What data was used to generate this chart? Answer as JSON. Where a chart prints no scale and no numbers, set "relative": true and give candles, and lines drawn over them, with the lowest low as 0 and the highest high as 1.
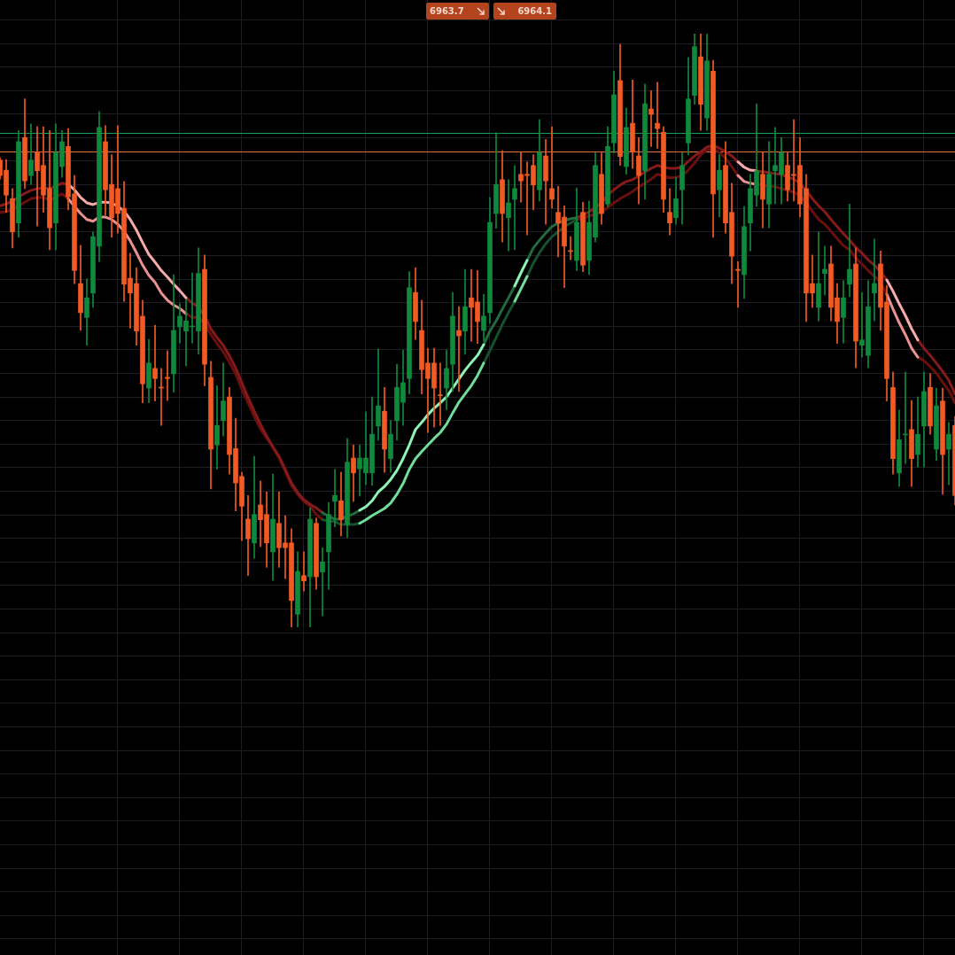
{
  "chart_data": {
    "type": "candlestick",
    "relative": true,
    "grid": true,
    "annotations": [
      "6963.7",
      "6964.1"
    ],
    "ref_lines": [
      {
        "axis": "y",
        "value": 0.833,
        "color": "#14a048"
      },
      {
        "axis": "y",
        "value": 0.801,
        "color": "#e8703c"
      }
    ],
    "categories": [
      null,
      null,
      null,
      null,
      null,
      null,
      null,
      null,
      null,
      null,
      null,
      null,
      null,
      null,
      null,
      null,
      null,
      null,
      null,
      null,
      null,
      null,
      null,
      null,
      null,
      null,
      null,
      null,
      null,
      null,
      null,
      null,
      null,
      null,
      null,
      null,
      null,
      null,
      null,
      null,
      null,
      null,
      null,
      null,
      null,
      null,
      null,
      null,
      null,
      null,
      null,
      null,
      null,
      null,
      null,
      null,
      null,
      null,
      null,
      null,
      null,
      null,
      null,
      null,
      null,
      null,
      null,
      null,
      null,
      null,
      null,
      null,
      null,
      null,
      null,
      null,
      null,
      null,
      null,
      null,
      null,
      null,
      null,
      null,
      null,
      null,
      null,
      null,
      null,
      null,
      null,
      null,
      null,
      null,
      null,
      null,
      null,
      null,
      null,
      null,
      null,
      null,
      null,
      null,
      null,
      null,
      null,
      null,
      null,
      null,
      null,
      null,
      null,
      null,
      null,
      null,
      null,
      null,
      null,
      null,
      null,
      null,
      null,
      null,
      null,
      null,
      null,
      null,
      null,
      null,
      null,
      null,
      null,
      null,
      null,
      null,
      null,
      null,
      null,
      null,
      null,
      null,
      null,
      null,
      null,
      null,
      null,
      null,
      null,
      null,
      null,
      null,
      null,
      null,
      null
    ],
    "ohlc": [
      [
        0.787,
        0.791,
        0.755,
        0.761
      ],
      [
        0.77,
        0.788,
        0.699,
        0.728
      ],
      [
        0.722,
        0.739,
        0.639,
        0.666
      ],
      [
        0.681,
        0.837,
        0.657,
        0.818
      ],
      [
        0.825,
        0.89,
        0.739,
        0.752
      ],
      [
        0.761,
        0.848,
        0.746,
        0.787
      ],
      [
        0.801,
        0.843,
        0.676,
        0.769
      ],
      [
        0.778,
        0.843,
        0.699,
        0.728
      ],
      [
        0.739,
        0.837,
        0.636,
        0.673
      ],
      [
        0.681,
        0.848,
        0.636,
        0.8
      ],
      [
        0.776,
        0.837,
        0.758,
        0.818
      ],
      [
        0.81,
        0.84,
        0.703,
        0.725
      ],
      [
        0.73,
        0.761,
        0.579,
        0.601
      ],
      [
        0.579,
        0.643,
        0.5,
        0.53
      ],
      [
        0.522,
        0.587,
        0.475,
        0.555
      ],
      [
        0.563,
        0.666,
        0.539,
        0.658
      ],
      [
        0.642,
        0.869,
        0.616,
        0.842
      ],
      [
        0.818,
        0.845,
        0.694,
        0.737
      ],
      [
        0.746,
        0.796,
        0.657,
        0.69
      ],
      [
        0.739,
        0.845,
        0.664,
        0.697
      ],
      [
        0.706,
        0.751,
        0.549,
        0.578
      ],
      [
        0.588,
        0.63,
        0.504,
        0.563
      ],
      [
        0.579,
        0.606,
        0.475,
        0.499
      ],
      [
        0.524,
        0.551,
        0.378,
        0.41
      ],
      [
        0.403,
        0.485,
        0.378,
        0.445
      ],
      [
        0.436,
        0.509,
        0.381,
        0.419
      ],
      [
        0.404,
        0.436,
        0.34,
        0.403
      ],
      [
        0.421,
        0.466,
        0.382,
        0.419
      ],
      [
        0.427,
        0.594,
        0.396,
        0.5
      ],
      [
        0.506,
        0.545,
        0.479,
        0.524
      ],
      [
        0.499,
        0.552,
        0.44,
        0.516
      ],
      [
        0.506,
        0.597,
        0.479,
        0.507
      ],
      [
        0.499,
        0.639,
        0.46,
        0.596
      ],
      [
        0.603,
        0.627,
        0.407,
        0.443
      ],
      [
        0.421,
        0.448,
        0.233,
        0.3
      ],
      [
        0.307,
        0.407,
        0.266,
        0.34
      ],
      [
        0.348,
        0.445,
        0.322,
        0.381
      ],
      [
        0.388,
        0.404,
        0.258,
        0.291
      ],
      [
        0.301,
        0.352,
        0.196,
        0.243
      ],
      [
        0.254,
        0.261,
        0.146,
        0.204
      ],
      [
        0.182,
        0.222,
        0.087,
        0.149
      ],
      [
        0.142,
        0.288,
        0.116,
        0.19
      ],
      [
        0.206,
        0.246,
        0.136,
        0.181
      ],
      [
        0.19,
        0.228,
        0.101,
        0.142
      ],
      [
        0.127,
        0.258,
        0.079,
        0.182
      ],
      [
        0.175,
        0.228,
        0.101,
        0.134
      ],
      [
        0.142,
        0.188,
        0.082,
        0.134
      ],
      [
        0.142,
        0.166,
        0,
        0.045
      ],
      [
        0.022,
        0.127,
        0,
        0.094
      ],
      [
        0.087,
        0.127,
        0.061,
        0.078
      ],
      [
        0.085,
        0.201,
        0,
        0.182
      ],
      [
        0.175,
        0.184,
        0.064,
        0.085
      ],
      [
        0.093,
        0.134,
        0.019,
        0.11
      ],
      [
        0.127,
        0.21,
        0.064,
        0.19
      ],
      [
        0.212,
        0.266,
        0.169,
        0.222
      ],
      [
        0.213,
        0.261,
        0.154,
        0.181
      ],
      [
        0.173,
        0.318,
        0.151,
        0.278
      ],
      [
        0.285,
        0.307,
        0.212,
        0.26
      ],
      [
        0.267,
        0.307,
        0.221,
        0.285
      ],
      [
        0.26,
        0.363,
        0.24,
        0.285
      ],
      [
        0.26,
        0.388,
        0.239,
        0.325
      ],
      [
        0.339,
        0.469,
        0.315,
        0.373
      ],
      [
        0.364,
        0.404,
        0.261,
        0.3
      ],
      [
        0.284,
        0.348,
        0.261,
        0.325
      ],
      [
        0.348,
        0.443,
        0.315,
        0.404
      ],
      [
        0.379,
        0.467,
        0.34,
        0.412
      ],
      [
        0.419,
        0.599,
        0.393,
        0.572
      ],
      [
        0.564,
        0.606,
        0.485,
        0.515
      ],
      [
        0.5,
        0.551,
        0.393,
        0.434
      ],
      [
        0.445,
        0.47,
        0.328,
        0.419
      ],
      [
        0.445,
        0.47,
        0.337,
        0.403
      ],
      [
        0.391,
        0.445,
        0.34,
        0.39
      ],
      [
        0.403,
        0.467,
        0.366,
        0.436
      ],
      [
        0.443,
        0.564,
        0.397,
        0.524
      ],
      [
        0.5,
        0.54,
        0.397,
        0.491
      ],
      [
        0.499,
        0.603,
        0.46,
        0.54
      ],
      [
        0.555,
        0.603,
        0.482,
        0.539
      ],
      [
        0.548,
        0.601,
        0.478,
        0.515
      ],
      [
        0.5,
        0.561,
        0.482,
        0.524
      ],
      [
        0.53,
        0.724,
        0.512,
        0.682
      ],
      [
        0.697,
        0.833,
        0.672,
        0.746
      ],
      [
        0.754,
        0.803,
        0.649,
        0.697
      ],
      [
        0.69,
        0.754,
        0.634,
        0.715
      ],
      [
        0.721,
        0.778,
        0.636,
        0.739
      ],
      [
        0.763,
        0.8,
        0.716,
        0.752
      ],
      [
        0.763,
        0.784,
        0.661,
        0.761
      ],
      [
        0.778,
        0.796,
        0.703,
        0.745
      ],
      [
        0.737,
        0.855,
        0.718,
        0.8
      ],
      [
        0.794,
        0.822,
        0.679,
        0.752
      ],
      [
        0.739,
        0.843,
        0.706,
        0.721
      ],
      [
        0.699,
        0.743,
        0.624,
        0.681
      ],
      [
        0.691,
        0.71,
        0.572,
        0.642
      ],
      [
        0.634,
        0.658,
        0.619,
        0.633
      ],
      [
        0.618,
        0.74,
        0.601,
        0.682
      ],
      [
        0.699,
        0.716,
        0.599,
        0.61
      ],
      [
        0.618,
        0.718,
        0.594,
        0.682
      ],
      [
        0.657,
        0.799,
        0.649,
        0.778
      ],
      [
        0.763,
        0.799,
        0.679,
        0.697
      ],
      [
        0.713,
        0.843,
        0.709,
        0.81
      ],
      [
        0.816,
        0.937,
        0.799,
        0.897
      ],
      [
        0.921,
        0.982,
        0.778,
        0.793
      ],
      [
        0.776,
        0.875,
        0.763,
        0.842
      ],
      [
        0.849,
        0.922,
        0.773,
        0.801
      ],
      [
        0.794,
        0.825,
        0.713,
        0.761
      ],
      [
        0.769,
        0.915,
        0.721,
        0.882
      ],
      [
        0.873,
        0.904,
        0.81,
        0.864
      ],
      [
        0.849,
        0.918,
        0.807,
        0.84
      ],
      [
        0.834,
        0.843,
        0.699,
        0.721
      ],
      [
        0.699,
        0.739,
        0.661,
        0.681
      ],
      [
        0.69,
        0.758,
        0.679,
        0.722
      ],
      [
        0.737,
        0.799,
        0.679,
        0.778
      ],
      [
        0.816,
        0.96,
        0.796,
        0.89
      ],
      [
        0.896,
        1,
        0.881,
        0.978
      ],
      [
        0.961,
        1,
        0.837,
        0.881
      ],
      [
        0.858,
        0.999,
        0.837,
        0.954
      ],
      [
        0.937,
        0.955,
        0.657,
        0.73
      ],
      [
        0.737,
        0.796,
        0.691,
        0.77
      ],
      [
        0.778,
        0.818,
        0.664,
        0.681
      ],
      [
        0.699,
        0.748,
        0.579,
        0.625
      ],
      [
        0.603,
        0.616,
        0.539,
        0.601
      ],
      [
        0.594,
        0.709,
        0.554,
        0.675
      ],
      [
        0.681,
        0.763,
        0.634,
        0.739
      ],
      [
        0.728,
        0.882,
        0.709,
        0.769
      ],
      [
        0.763,
        0.8,
        0.673,
        0.721
      ],
      [
        0.713,
        0.818,
        0.673,
        0.763
      ],
      [
        0.769,
        0.842,
        0.713,
        0.778
      ],
      [
        0.763,
        0.825,
        0.713,
        0.8
      ],
      [
        0.778,
        0.799,
        0.718,
        0.737
      ],
      [
        0.763,
        0.855,
        0.718,
        0.761
      ],
      [
        0.778,
        0.825,
        0.691,
        0.713
      ],
      [
        0.739,
        0.763,
        0.515,
        0.563
      ],
      [
        0.579,
        0.627,
        0.539,
        0.563
      ],
      [
        0.539,
        0.666,
        0.516,
        0.579
      ],
      [
        0.596,
        0.642,
        0.56,
        0.603
      ],
      [
        0.612,
        0.642,
        0.516,
        0.539
      ],
      [
        0.555,
        0.579,
        0.478,
        0.515
      ],
      [
        0.522,
        0.584,
        0.479,
        0.555
      ],
      [
        0.578,
        0.713,
        0.557,
        0.603
      ],
      [
        0.612,
        0.639,
        0.437,
        0.482
      ],
      [
        0.475,
        0.564,
        0.455,
        0.484
      ],
      [
        0.458,
        0.584,
        0.437,
        0.54
      ],
      [
        0.563,
        0.654,
        0.516,
        0.579
      ],
      [
        0.612,
        0.634,
        0.5,
        0.539
      ],
      [
        0.548,
        0.576,
        0.381,
        0.419
      ],
      [
        0.404,
        0.43,
        0.258,
        0.284
      ],
      [
        0.26,
        0.366,
        0.237,
        0.316
      ],
      [
        0.324,
        0.43,
        0.276,
        0.325
      ],
      [
        0.333,
        0.382,
        0.237,
        0.284
      ],
      [
        0.291,
        0.388,
        0.27,
        0.325
      ],
      [
        0.339,
        0.43,
        0.27,
        0.397
      ],
      [
        0.404,
        0.427,
        0.325,
        0.339
      ],
      [
        0.3,
        0.403,
        0.281,
        0.373
      ],
      [
        0.381,
        0.403,
        0.224,
        0.291
      ],
      [
        0.3,
        0.345,
        0.24,
        0.325
      ],
      [
        0.34,
        0.355,
        0.206,
        0.222
      ]
    ],
    "colors": [
      "#f25a24",
      "#f25a24",
      "#f25a24",
      "#0f8a3c",
      "#f25a24",
      "#0f8a3c",
      "#f25a24",
      "#f25a24",
      "#f25a24",
      "#0f8a3c",
      "#0f8a3c",
      "#f25a24",
      "#f25a24",
      "#f25a24",
      "#0f8a3c",
      "#0f8a3c",
      "#0f8a3c",
      "#f25a24",
      "#f25a24",
      "#f25a24",
      "#f25a24",
      "#f25a24",
      "#f25a24",
      "#f25a24",
      "#0f8a3c",
      "#f25a24",
      "#f25a24",
      "#f25a24",
      "#0f8a3c",
      "#0f8a3c",
      "#0f8a3c",
      "#0f8a3c",
      "#0f8a3c",
      "#f25a24",
      "#f25a24",
      "#0f8a3c",
      "#0f8a3c",
      "#f25a24",
      "#f25a24",
      "#f25a24",
      "#f25a24",
      "#0f8a3c",
      "#f25a24",
      "#f25a24",
      "#0f8a3c",
      "#f25a24",
      "#f25a24",
      "#f25a24",
      "#0f8a3c",
      "#f25a24",
      "#0f8a3c",
      "#f25a24",
      "#0f8a3c",
      "#0f8a3c",
      "#0f8a3c",
      "#f25a24",
      "#0f8a3c",
      "#f25a24",
      "#0f8a3c",
      "#0f8a3c",
      "#0f8a3c",
      "#0f8a3c",
      "#f25a24",
      "#0f8a3c",
      "#0f8a3c",
      "#0f8a3c",
      "#0f8a3c",
      "#f25a24",
      "#f25a24",
      "#f25a24",
      "#f25a24",
      "#f25a24",
      "#0f8a3c",
      "#0f8a3c",
      "#f25a24",
      "#0f8a3c",
      "#f25a24",
      "#f25a24",
      "#0f8a3c",
      "#0f8a3c",
      "#0f8a3c",
      "#f25a24",
      "#0f8a3c",
      "#0f8a3c",
      "#f25a24",
      "#f25a24",
      "#f25a24",
      "#0f8a3c",
      "#f25a24",
      "#f25a24",
      "#f25a24",
      "#f25a24",
      "#f25a24",
      "#0f8a3c",
      "#f25a24",
      "#0f8a3c",
      "#0f8a3c",
      "#f25a24",
      "#0f8a3c",
      "#0f8a3c",
      "#f25a24",
      "#0f8a3c",
      "#f25a24",
      "#f25a24",
      "#0f8a3c",
      "#f25a24",
      "#f25a24",
      "#f25a24",
      "#f25a24",
      "#0f8a3c",
      "#0f8a3c",
      "#0f8a3c",
      "#0f8a3c",
      "#f25a24",
      "#0f8a3c",
      "#f25a24",
      "#0f8a3c",
      "#f25a24",
      "#f25a24",
      "#f25a24",
      "#0f8a3c",
      "#0f8a3c",
      "#0f8a3c",
      "#f25a24",
      "#0f8a3c",
      "#0f8a3c",
      "#0f8a3c",
      "#f25a24",
      "#f25a24",
      "#f25a24",
      "#f25a24",
      "#f25a24",
      "#0f8a3c",
      "#0f8a3c",
      "#f25a24",
      "#f25a24",
      "#0f8a3c",
      "#0f8a3c",
      "#f25a24",
      "#0f8a3c",
      "#0f8a3c",
      "#0f8a3c",
      "#f25a24",
      "#f25a24",
      "#f25a24",
      "#0f8a3c",
      "#0f8a3c",
      "#f25a24",
      "#0f8a3c",
      "#0f8a3c",
      "#f25a24",
      "#0f8a3c",
      "#f25a24",
      "#0f8a3c",
      "#f25a24"
    ],
    "series": [
      {
        "type": "line",
        "color": "#f7aaaa",
        "values": [
          null,
          null,
          null,
          null,
          null,
          null,
          null,
          null,
          null,
          null,
          null,
          0.746,
          0.737,
          0.724,
          0.715,
          0.712,
          0.716,
          0.716,
          0.715,
          0.709,
          0.701,
          0.687,
          0.669,
          0.648,
          0.628,
          0.615,
          0.601,
          0.59,
          0.578,
          0.567,
          0.555,
          null,
          null,
          null,
          null,
          null,
          null,
          null,
          null,
          null,
          null,
          null,
          null,
          null,
          null,
          null,
          null,
          null,
          null,
          null,
          null,
          null,
          null,
          null,
          null,
          null,
          null,
          null,
          null,
          null,
          null,
          null,
          null,
          null,
          null,
          null,
          null,
          null,
          null,
          null,
          null,
          null,
          null,
          null,
          null,
          null,
          null,
          null,
          null,
          null,
          null,
          null,
          null,
          null,
          null,
          null,
          null,
          null,
          null,
          null,
          null,
          null,
          null,
          null,
          null,
          null,
          null,
          null,
          null,
          null,
          null,
          null,
          null,
          null,
          null,
          null,
          null,
          null,
          null,
          null,
          null,
          null,
          null,
          null,
          null,
          null,
          null,
          null,
          null,
          0.784,
          0.775,
          0.77,
          0.769,
          null,
          null,
          null,
          null,
          null,
          null,
          null,
          null,
          null,
          null,
          null,
          null,
          null,
          null,
          null,
          null,
          null,
          null,
          null,
          null,
          0.585,
          0.566,
          0.545,
          0.525,
          0.503,
          0.484,
          null,
          null,
          null,
          null,
          null,
          null
        ]
      },
      {
        "type": "line",
        "color": "#8ef4b6",
        "values": [
          null,
          null,
          null,
          null,
          null,
          null,
          null,
          null,
          null,
          null,
          null,
          null,
          null,
          null,
          null,
          null,
          null,
          null,
          null,
          null,
          null,
          null,
          null,
          null,
          null,
          null,
          null,
          null,
          null,
          null,
          null,
          null,
          null,
          null,
          null,
          null,
          null,
          null,
          null,
          null,
          null,
          null,
          null,
          null,
          null,
          null,
          null,
          null,
          null,
          null,
          null,
          null,
          null,
          null,
          null,
          null,
          null,
          null,
          0.197,
          0.203,
          0.213,
          0.228,
          0.237,
          0.249,
          0.264,
          0.284,
          0.307,
          0.333,
          0.345,
          0.358,
          0.369,
          0.378,
          0.388,
          0.403,
          0.418,
          0.433,
          0.446,
          0.458,
          0.476,
          null,
          null,
          null,
          null,
          0.575,
          0.597,
          0.618,
          null,
          null,
          null,
          null,
          null,
          null,
          null,
          null,
          null,
          null,
          null,
          null,
          null,
          null,
          null,
          null,
          null,
          null,
          null,
          null,
          null,
          null,
          null,
          null,
          null,
          null,
          null,
          null,
          null,
          null,
          null,
          null,
          null,
          null,
          null,
          null,
          null,
          null,
          null,
          null,
          null,
          null,
          null,
          null,
          null,
          null,
          null,
          null,
          null,
          null,
          null,
          null,
          null,
          null,
          null,
          null,
          null,
          null,
          null,
          null,
          null,
          null,
          null,
          null,
          null,
          null,
          null,
          null,
          null
        ]
      },
      {
        "type": "line",
        "color": "#226b3d",
        "values": [
          null,
          null,
          null,
          null,
          null,
          null,
          null,
          null,
          null,
          null,
          null,
          null,
          null,
          null,
          null,
          null,
          null,
          null,
          null,
          null,
          null,
          null,
          null,
          null,
          null,
          null,
          null,
          null,
          null,
          null,
          null,
          null,
          null,
          null,
          null,
          null,
          null,
          null,
          null,
          null,
          null,
          null,
          null,
          null,
          null,
          null,
          null,
          null,
          null,
          null,
          null,
          null,
          0.193,
          0.187,
          0.182,
          0.182,
          0.187,
          0.191,
          0.197,
          null,
          null,
          null,
          null,
          null,
          null,
          null,
          null,
          null,
          null,
          null,
          null,
          null,
          null,
          null,
          null,
          null,
          null,
          null,
          0.476,
          0.499,
          0.516,
          0.536,
          0.555,
          0.575,
          null,
          0.618,
          0.639,
          0.652,
          0.664,
          0.675,
          0.681,
          0.685,
          0.688,
          0.69,
          null,
          null,
          null,
          null,
          null,
          null,
          null,
          null,
          null,
          null,
          null,
          null,
          null,
          null,
          null,
          null,
          null,
          null,
          null,
          null,
          null,
          null,
          null,
          null,
          null,
          null,
          null,
          null,
          null,
          null,
          null,
          null,
          null,
          null,
          null,
          null,
          null,
          null,
          null,
          null,
          null,
          null,
          null,
          null,
          null,
          null,
          null,
          null,
          null,
          null,
          null,
          null,
          null,
          null,
          null,
          null,
          null,
          null,
          null,
          null,
          null
        ]
      },
      {
        "type": "line",
        "color": "#861a1a",
        "values": [
          0.71,
          0.713,
          0.718,
          0.725,
          0.731,
          0.736,
          0.739,
          0.74,
          0.739,
          0.743,
          0.748,
          0.746,
          null,
          null,
          null,
          null,
          null,
          null,
          null,
          null,
          null,
          null,
          null,
          null,
          null,
          null,
          null,
          null,
          null,
          null,
          0.555,
          0.546,
          0.54,
          0.524,
          0.503,
          0.488,
          0.475,
          0.457,
          0.437,
          0.412,
          0.387,
          0.364,
          0.342,
          0.322,
          0.304,
          0.288,
          0.266,
          0.243,
          0.227,
          0.215,
          0.207,
          0.201,
          0.193,
          null,
          null,
          null,
          null,
          null,
          null,
          null,
          null,
          null,
          null,
          null,
          null,
          null,
          null,
          null,
          null,
          null,
          null,
          null,
          null,
          null,
          null,
          null,
          null,
          null,
          null,
          null,
          null,
          null,
          null,
          null,
          null,
          null,
          null,
          null,
          null,
          null,
          null,
          null,
          null,
          0.69,
          0.694,
          0.7,
          0.707,
          0.715,
          0.728,
          0.737,
          0.745,
          0.751,
          0.754,
          0.76,
          0.767,
          0.773,
          0.778,
          0.775,
          0.773,
          0.773,
          0.775,
          0.785,
          0.794,
          0.801,
          0.809,
          0.812,
          0.807,
          0.801,
          0.794,
          0.784,
          null,
          null,
          0.769,
          0.767,
          0.766,
          0.764,
          0.763,
          0.758,
          0.755,
          0.748,
          0.736,
          0.722,
          0.71,
          0.7,
          0.687,
          0.675,
          0.663,
          0.652,
          0.64,
          0.63,
          0.619,
          0.61,
          0.599,
          0.585,
          null,
          null,
          null,
          null,
          0.484,
          0.47,
          0.458,
          0.445,
          0.431,
          0.416,
          0.393
        ]
      },
      {
        "type": "line",
        "color": "#eb9090",
        "values": [
          null,
          null,
          null,
          null,
          null,
          null,
          null,
          null,
          null,
          null,
          null,
          0.722,
          0.709,
          0.697,
          0.687,
          0.684,
          0.691,
          0.691,
          0.687,
          0.679,
          0.667,
          0.651,
          0.631,
          0.61,
          0.593,
          0.581,
          0.563,
          0.551,
          0.543,
          0.537,
          0.528,
          null,
          null,
          null,
          null,
          null,
          null,
          null,
          null,
          null,
          null,
          null,
          null,
          null,
          null,
          null,
          null,
          null,
          null,
          null,
          null,
          null,
          null,
          null,
          null,
          null,
          null,
          null,
          null,
          null,
          null,
          null,
          null,
          null,
          null,
          null,
          null,
          null,
          null,
          null,
          null,
          null,
          null,
          null,
          null,
          null,
          null,
          null,
          null,
          null,
          null,
          null,
          null,
          null,
          null,
          null,
          null,
          null,
          null,
          null,
          null,
          null,
          null,
          null,
          null,
          null,
          null,
          null,
          null,
          null,
          null,
          null,
          null,
          null,
          null,
          null,
          null,
          null,
          null,
          null,
          null,
          null,
          null,
          null,
          null,
          null,
          null,
          null,
          null,
          0.761,
          0.751,
          0.748,
          0.746,
          null,
          null,
          null,
          null,
          null,
          null,
          null,
          null,
          null,
          null,
          null,
          null,
          null,
          null,
          null,
          null,
          null,
          null,
          null,
          null,
          0.561,
          0.536,
          0.513,
          0.493,
          0.47,
          0.455,
          null,
          null,
          null,
          null,
          null,
          null
        ]
      },
      {
        "type": "line",
        "color": "#70de9a",
        "values": [
          null,
          null,
          null,
          null,
          null,
          null,
          null,
          null,
          null,
          null,
          null,
          null,
          null,
          null,
          null,
          null,
          null,
          null,
          null,
          null,
          null,
          null,
          null,
          null,
          null,
          null,
          null,
          null,
          null,
          null,
          null,
          null,
          null,
          null,
          null,
          null,
          null,
          null,
          null,
          null,
          null,
          null,
          null,
          null,
          null,
          null,
          null,
          null,
          null,
          null,
          null,
          null,
          null,
          null,
          null,
          null,
          null,
          null,
          0.175,
          0.181,
          0.188,
          0.194,
          0.2,
          0.209,
          0.224,
          0.242,
          0.266,
          0.284,
          0.296,
          0.307,
          0.318,
          0.328,
          0.342,
          0.361,
          0.379,
          0.393,
          0.407,
          0.424,
          0.445,
          null,
          null,
          null,
          null,
          0.549,
          0.57,
          0.591,
          null,
          null,
          null,
          null,
          null,
          null,
          null,
          null,
          null,
          null,
          null,
          null,
          null,
          null,
          null,
          null,
          null,
          null,
          null,
          null,
          null,
          null,
          null,
          null,
          null,
          null,
          null,
          null,
          null,
          null,
          null,
          null,
          null,
          null,
          null,
          null,
          null,
          null,
          null,
          null,
          null,
          null,
          null,
          null,
          null,
          null,
          null,
          null,
          null,
          null,
          null,
          null,
          null,
          null,
          null,
          null,
          null,
          null,
          null,
          null,
          null,
          null,
          null,
          null,
          null,
          null,
          null,
          null,
          null
        ]
      },
      {
        "type": "line",
        "color": "#16502c",
        "values": [
          null,
          null,
          null,
          null,
          null,
          null,
          null,
          null,
          null,
          null,
          null,
          null,
          null,
          null,
          null,
          null,
          null,
          null,
          null,
          null,
          null,
          null,
          null,
          null,
          null,
          null,
          null,
          null,
          null,
          null,
          null,
          null,
          null,
          null,
          null,
          null,
          null,
          null,
          null,
          null,
          null,
          null,
          null,
          null,
          null,
          null,
          null,
          null,
          null,
          null,
          null,
          null,
          0.181,
          0.179,
          0.178,
          0.173,
          0.173,
          0.173,
          0.175,
          null,
          null,
          null,
          null,
          null,
          null,
          null,
          null,
          null,
          null,
          null,
          null,
          null,
          null,
          null,
          null,
          null,
          null,
          null,
          0.445,
          0.466,
          0.488,
          0.51,
          0.53,
          0.549,
          null,
          0.591,
          0.613,
          0.631,
          0.646,
          0.658,
          0.666,
          0.675,
          0.681,
          0.687,
          null,
          null,
          null,
          null,
          null,
          null,
          null,
          null,
          null,
          null,
          null,
          null,
          null,
          null,
          null,
          null,
          null,
          null,
          null,
          null,
          null,
          null,
          null,
          null,
          null,
          null,
          null,
          null,
          null,
          null,
          null,
          null,
          null,
          null,
          null,
          null,
          null,
          null,
          null,
          null,
          null,
          null,
          null,
          null,
          null,
          null,
          null,
          null,
          null,
          null,
          null,
          null,
          null,
          null,
          null,
          null,
          null,
          null,
          null,
          null,
          null
        ]
      },
      {
        "type": "line",
        "color": "#6a0e0e",
        "values": [
          0.699,
          0.7,
          0.704,
          0.71,
          0.716,
          0.722,
          0.724,
          0.724,
          0.719,
          0.725,
          0.73,
          0.722,
          null,
          null,
          null,
          null,
          null,
          null,
          null,
          null,
          null,
          null,
          null,
          null,
          null,
          null,
          null,
          null,
          null,
          null,
          0.528,
          0.522,
          0.522,
          0.512,
          0.493,
          0.478,
          0.464,
          0.446,
          0.427,
          0.401,
          0.378,
          0.355,
          0.334,
          0.319,
          0.303,
          0.285,
          0.263,
          0.239,
          0.224,
          0.212,
          0.204,
          0.19,
          0.181,
          null,
          null,
          null,
          null,
          null,
          null,
          null,
          null,
          null,
          null,
          null,
          null,
          null,
          null,
          null,
          null,
          null,
          null,
          null,
          null,
          null,
          null,
          null,
          null,
          null,
          null,
          null,
          null,
          null,
          null,
          null,
          null,
          null,
          null,
          null,
          null,
          null,
          null,
          null,
          null,
          0.687,
          0.688,
          0.693,
          0.696,
          0.699,
          0.707,
          0.715,
          0.722,
          0.728,
          0.734,
          0.742,
          0.748,
          0.755,
          0.763,
          0.76,
          0.757,
          0.758,
          0.761,
          0.77,
          0.782,
          0.796,
          0.804,
          0.806,
          0.8,
          0.79,
          0.776,
          0.761,
          null,
          null,
          0.746,
          0.745,
          0.743,
          0.742,
          0.739,
          0.736,
          0.733,
          0.727,
          0.716,
          0.701,
          0.687,
          0.679,
          0.667,
          0.655,
          0.643,
          0.636,
          0.622,
          0.612,
          0.601,
          0.591,
          0.581,
          0.561,
          null,
          null,
          null,
          null,
          0.455,
          0.449,
          0.439,
          0.428,
          0.413,
          0.399,
          0.378
        ]
      }
    ]
  }
}
